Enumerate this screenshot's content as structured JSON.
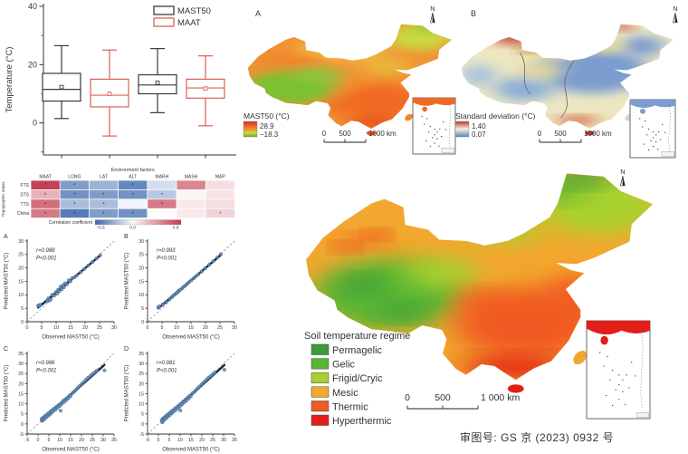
{
  "chart_data": [
    {
      "type": "box",
      "ylabel": "Temperature (°C)",
      "yticks": [
        0,
        20,
        40
      ],
      "ylim": [
        -11,
        40
      ],
      "legend": [
        {
          "label": "MAST50",
          "color": "#3a3a3a"
        },
        {
          "label": "MAAT",
          "color": "#d9605a"
        }
      ],
      "boxes": [
        {
          "group": "MAST50",
          "color": "#3a3a3a",
          "low": 1.5,
          "q1": 7.5,
          "median": 11.5,
          "mean": 12.3,
          "q3": 17.0,
          "high": 26.5
        },
        {
          "group": "MAAT",
          "color": "#d9605a",
          "low": -4.5,
          "q1": 5.5,
          "median": 9.5,
          "mean": 10.0,
          "q3": 15.0,
          "high": 25.0
        },
        {
          "group": "MAST50",
          "color": "#3a3a3a",
          "low": 3.5,
          "q1": 10.0,
          "median": 13.0,
          "mean": 13.8,
          "q3": 16.5,
          "high": 25.5
        },
        {
          "group": "MAAT",
          "color": "#d9605a",
          "low": -1.0,
          "q1": 8.5,
          "median": 12.0,
          "mean": 11.8,
          "q3": 15.0,
          "high": 23.0
        }
      ]
    },
    {
      "type": "heatmap",
      "title": "Environment factors",
      "ylabel": "Topographic steps",
      "columns": [
        "MAAT",
        "LONG",
        "LAT",
        "ALT",
        "MARH",
        "MASH",
        "MAP"
      ],
      "rows": [
        "FTS",
        "STS",
        "TTS",
        "China"
      ],
      "values": [
        [
          0.85,
          -0.45,
          -0.35,
          -0.55,
          -0.15,
          0.55,
          0.15
        ],
        [
          0.35,
          -0.5,
          -0.45,
          -0.5,
          -0.25,
          0.05,
          0.12
        ],
        [
          0.65,
          -0.3,
          -0.3,
          -0.05,
          0.6,
          0.1,
          0.15
        ],
        [
          0.6,
          -0.6,
          -0.45,
          -0.5,
          0.02,
          0.1,
          0.2
        ]
      ],
      "significance": [
        [
          "*",
          "*",
          "",
          "*",
          "",
          "",
          ""
        ],
        [
          "*",
          "*",
          "*",
          "*",
          "*",
          "",
          ""
        ],
        [
          "*",
          "*",
          "*",
          "",
          "*",
          "",
          ""
        ],
        [
          "*",
          "*",
          "*",
          "*",
          "",
          "",
          "*"
        ]
      ],
      "colorbar": {
        "label": "Correlation coefficient",
        "ticks": [
          "−0.6",
          "0.0",
          "0.8"
        ],
        "tick_values": [
          -0.6,
          0.0,
          0.8
        ],
        "min": -0.7,
        "max": 0.9,
        "neg_color": "#3a66ad",
        "pos_color": "#c2374b"
      }
    },
    {
      "type": "scatter",
      "label": "A",
      "r": "r=0.988",
      "p": "P<0.001",
      "xlabel": "Observed MAST50 (°C)",
      "ylabel": "Predicted MAST50 (°C)",
      "lim": [
        0,
        30
      ],
      "tick_step": 5,
      "point_color": "#6d94bd",
      "points": [
        [
          3.8,
          6.0
        ],
        [
          4.1,
          5.8
        ],
        [
          4.5,
          6.3
        ],
        [
          6.9,
          7.6
        ],
        [
          7.3,
          8.7
        ],
        [
          7.7,
          7.9
        ],
        [
          8.1,
          8.3
        ],
        [
          8.6,
          10.0
        ],
        [
          9.3,
          9.7
        ],
        [
          9.9,
          11.0
        ],
        [
          10.3,
          10.4
        ],
        [
          10.7,
          11.9
        ],
        [
          11.1,
          11.3
        ],
        [
          11.5,
          13.0
        ],
        [
          11.9,
          12.1
        ],
        [
          12.3,
          13.5
        ],
        [
          12.7,
          12.8
        ],
        [
          13.1,
          14.3
        ],
        [
          13.7,
          13.9
        ],
        [
          14.3,
          15.4
        ],
        [
          14.9,
          15.0
        ],
        [
          15.5,
          16.2
        ],
        [
          16.3,
          16.5
        ],
        [
          17.1,
          17.2
        ],
        [
          18.5,
          18.4
        ],
        [
          19.7,
          19.6
        ],
        [
          21.1,
          20.9
        ],
        [
          22.5,
          22.2
        ],
        [
          23.9,
          23.5
        ],
        [
          25.2,
          24.7
        ]
      ]
    },
    {
      "type": "scatter",
      "label": "B",
      "r": "r=0.993",
      "p": "P<0.001",
      "xlabel": "Observed MAST50 (°C)",
      "ylabel": "Predicted MAST50 (°C)",
      "lim": [
        0,
        30
      ],
      "tick_step": 5,
      "point_color": "#6d94bd",
      "points": [
        [
          3.7,
          5.4
        ],
        [
          4.1,
          5.7
        ],
        [
          5.3,
          6.5
        ],
        [
          6.5,
          7.4
        ],
        [
          7.7,
          8.5
        ],
        [
          8.5,
          9.3
        ],
        [
          9.1,
          9.9
        ],
        [
          9.7,
          10.4
        ],
        [
          10.1,
          10.7
        ],
        [
          10.5,
          11.1
        ],
        [
          10.9,
          11.6
        ],
        [
          11.3,
          11.9
        ],
        [
          11.9,
          12.4
        ],
        [
          12.5,
          13.0
        ],
        [
          13.1,
          13.5
        ],
        [
          13.7,
          14.1
        ],
        [
          14.3,
          14.7
        ],
        [
          15.1,
          15.4
        ],
        [
          15.9,
          16.1
        ],
        [
          16.7,
          16.9
        ],
        [
          17.5,
          17.6
        ],
        [
          18.7,
          18.7
        ],
        [
          19.9,
          19.9
        ],
        [
          21.3,
          21.2
        ],
        [
          22.7,
          22.5
        ],
        [
          24.1,
          23.9
        ],
        [
          25.3,
          25.1
        ]
      ]
    },
    {
      "type": "scatter",
      "label": "C",
      "r": "r=0.986",
      "p": "P<0.001",
      "xlabel": "Observed MAST50 (°C)",
      "ylabel": "Predicted MAST50 (°C)",
      "lim": [
        -5,
        35
      ],
      "tick_step": 5,
      "point_color": "#6d94bd",
      "points": [
        [
          1.6,
          2.4
        ],
        [
          1.9,
          1.6
        ],
        [
          2.2,
          3.0
        ],
        [
          2.5,
          2.1
        ],
        [
          2.8,
          3.5
        ],
        [
          3.1,
          2.7
        ],
        [
          3.4,
          4.1
        ],
        [
          3.8,
          3.3
        ],
        [
          4.2,
          4.8
        ],
        [
          4.6,
          4.0
        ],
        [
          5.0,
          5.5
        ],
        [
          5.4,
          4.7
        ],
        [
          5.8,
          6.2
        ],
        [
          6.2,
          5.5
        ],
        [
          6.6,
          6.9
        ],
        [
          7.0,
          6.3
        ],
        [
          7.5,
          7.7
        ],
        [
          8.0,
          7.1
        ],
        [
          8.5,
          8.6
        ],
        [
          9.0,
          8.0
        ],
        [
          9.5,
          9.4
        ],
        [
          10.0,
          8.9
        ],
        [
          10.4,
          6.6
        ],
        [
          10.5,
          10.2
        ],
        [
          11.0,
          10.0
        ],
        [
          11.5,
          11.4
        ],
        [
          12.0,
          10.9
        ],
        [
          12.5,
          12.2
        ],
        [
          13.0,
          11.8
        ],
        [
          13.5,
          13.1
        ],
        [
          14.0,
          12.8
        ],
        [
          14.5,
          14.2
        ],
        [
          15.0,
          13.9
        ],
        [
          15.8,
          15.3
        ],
        [
          16.6,
          16.0
        ],
        [
          17.4,
          16.9
        ],
        [
          18.2,
          17.8
        ],
        [
          19.0,
          18.7
        ],
        [
          20.0,
          19.7
        ],
        [
          21.0,
          20.8
        ],
        [
          22.0,
          21.9
        ],
        [
          23.0,
          22.9
        ],
        [
          24.0,
          23.8
        ],
        [
          25.0,
          24.7
        ],
        [
          26.0,
          25.6
        ],
        [
          27.0,
          26.4
        ],
        [
          30.6,
          26.6
        ]
      ]
    },
    {
      "type": "scatter",
      "label": "D",
      "r": "r=0.981",
      "p": "P<0.001",
      "xlabel": "Observed MAST50 (°C)",
      "ylabel": "Predicted MAST50 (°C)",
      "lim": [
        -5,
        35
      ],
      "tick_step": 5,
      "point_color": "#6d94bd",
      "points": [
        [
          1.5,
          2.0
        ],
        [
          1.8,
          0.8
        ],
        [
          2.1,
          2.7
        ],
        [
          2.4,
          1.7
        ],
        [
          2.7,
          3.2
        ],
        [
          3.0,
          2.4
        ],
        [
          3.3,
          3.8
        ],
        [
          3.7,
          3.0
        ],
        [
          4.1,
          4.5
        ],
        [
          4.5,
          3.8
        ],
        [
          4.9,
          5.2
        ],
        [
          5.3,
          4.5
        ],
        [
          5.7,
          5.9
        ],
        [
          6.1,
          5.3
        ],
        [
          6.5,
          6.7
        ],
        [
          6.9,
          6.1
        ],
        [
          7.4,
          7.5
        ],
        [
          7.9,
          6.9
        ],
        [
          8.4,
          8.4
        ],
        [
          8.9,
          7.8
        ],
        [
          9.4,
          9.2
        ],
        [
          9.9,
          8.7
        ],
        [
          10.1,
          6.7
        ],
        [
          10.4,
          10.1
        ],
        [
          10.9,
          9.8
        ],
        [
          11.4,
          11.2
        ],
        [
          11.9,
          10.7
        ],
        [
          12.4,
          12.1
        ],
        [
          12.9,
          11.6
        ],
        [
          13.4,
          13.0
        ],
        [
          13.9,
          12.6
        ],
        [
          14.4,
          14.0
        ],
        [
          14.9,
          13.7
        ],
        [
          15.7,
          15.2
        ],
        [
          16.5,
          15.9
        ],
        [
          17.3,
          16.8
        ],
        [
          18.1,
          17.7
        ],
        [
          18.9,
          18.6
        ],
        [
          19.9,
          19.6
        ],
        [
          20.9,
          20.7
        ],
        [
          21.9,
          21.8
        ],
        [
          22.9,
          22.8
        ],
        [
          23.9,
          23.7
        ],
        [
          24.9,
          24.6
        ],
        [
          25.9,
          25.5
        ],
        [
          30.4,
          26.9
        ]
      ]
    }
  ],
  "map_a": {
    "panel_label": "A",
    "north_label": "N",
    "legend_title": "MAST50 (°C)",
    "legend_max": "28.9",
    "legend_min": "−18.3",
    "scale_labels": [
      "0",
      "500",
      "1000 km"
    ]
  },
  "map_b": {
    "panel_label": "B",
    "north_label": "N",
    "legend_title": "Standard deviation (°C)",
    "legend_max": "1.40",
    "legend_min": "0.07",
    "scale_labels": [
      "0",
      "500",
      "1000 km"
    ]
  },
  "map_soil": {
    "north_label": "N",
    "legend_title": "Soil temperature regime",
    "classes": [
      {
        "label": "Permagelic",
        "color": "#3e9a3b"
      },
      {
        "label": "Gelic",
        "color": "#58b630"
      },
      {
        "label": "Frigid/Cryic",
        "color": "#a8d12f"
      },
      {
        "label": "Mesic",
        "color": "#f2a72e"
      },
      {
        "label": "Thermic",
        "color": "#f15a24"
      },
      {
        "label": "Hyperthermic",
        "color": "#e31e18"
      }
    ],
    "scale_labels": [
      "0",
      "500",
      "1 000 km"
    ]
  },
  "caption": "审图号: GS 京 (2023) 0932 号"
}
